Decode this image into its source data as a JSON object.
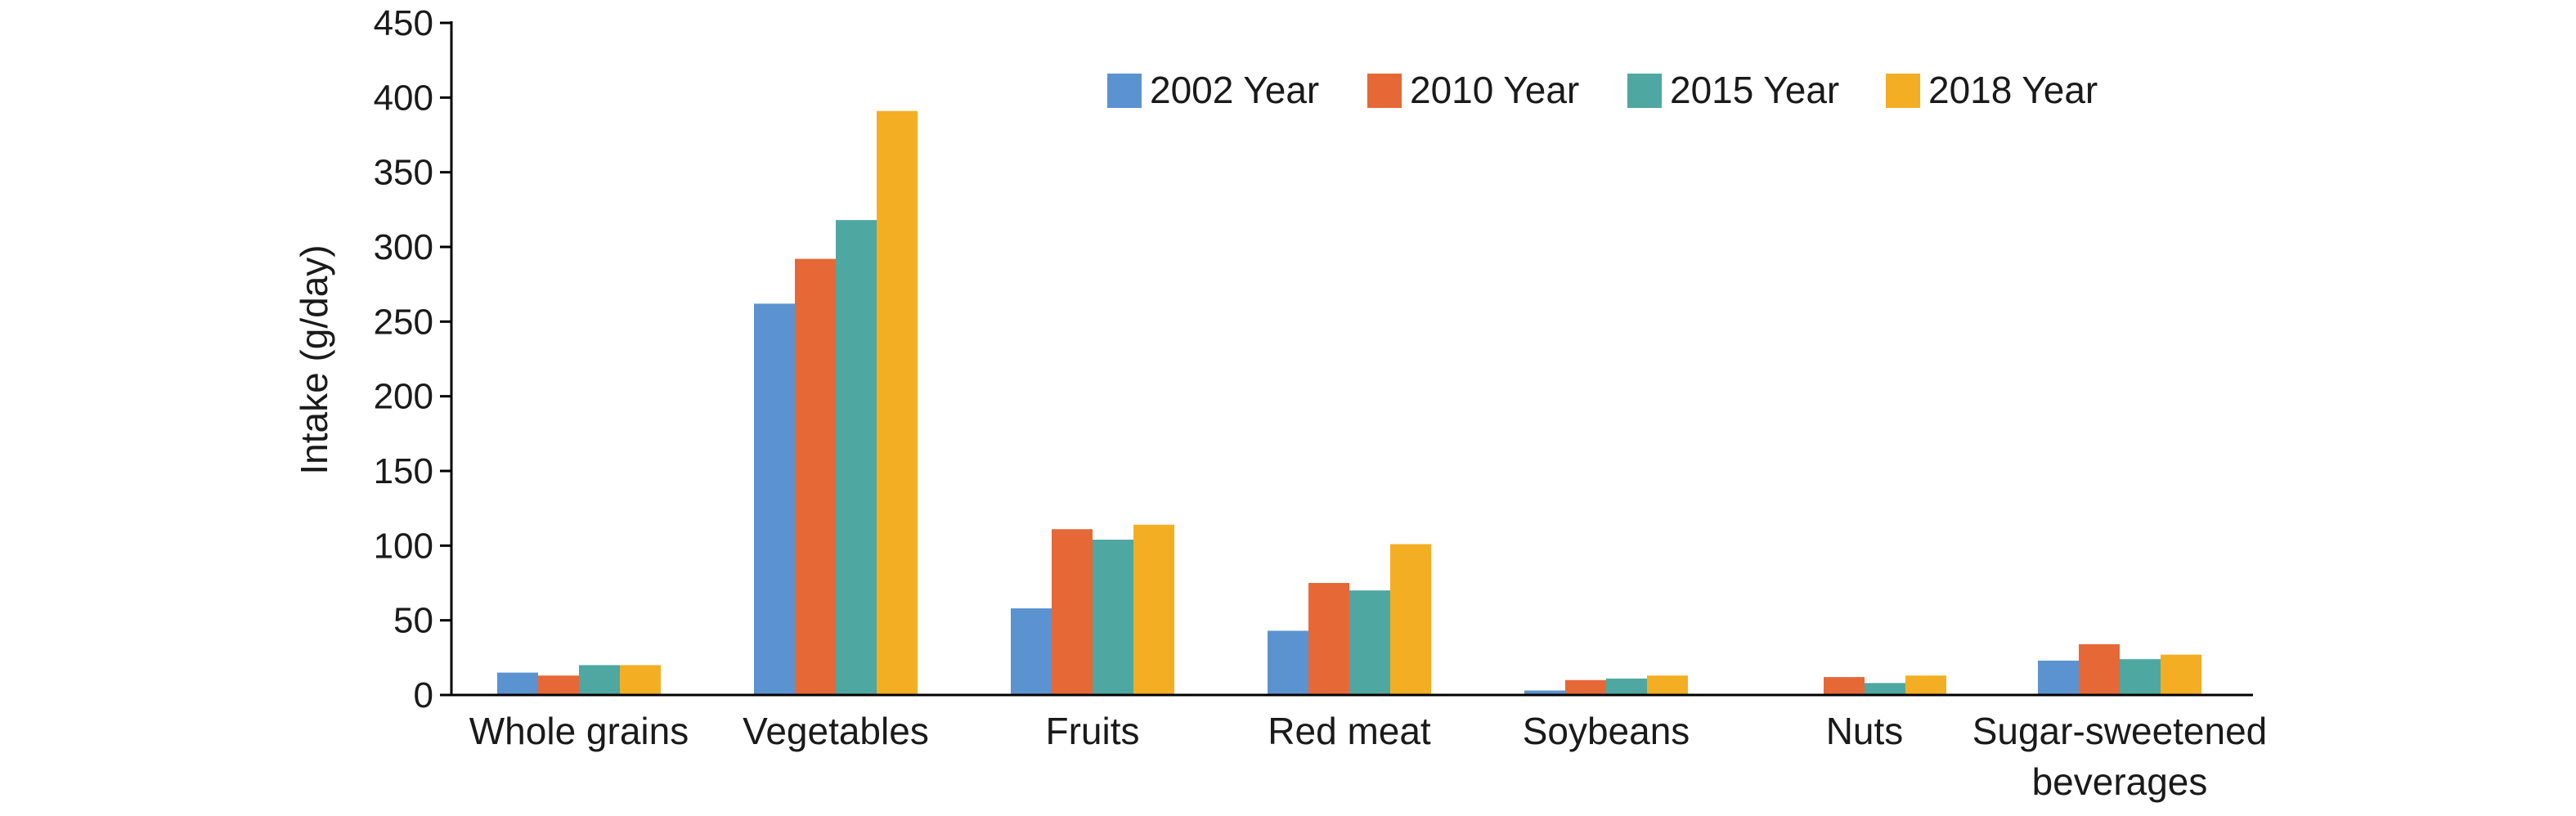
{
  "chart_data": {
    "type": "bar",
    "title": "",
    "xlabel": "",
    "ylabel": "Intake (g/day)",
    "ylim": [
      0,
      450
    ],
    "yticks": [
      0,
      50,
      100,
      150,
      200,
      250,
      300,
      350,
      400,
      450
    ],
    "grid": false,
    "legend_position": "top-right",
    "categories": [
      [
        "Whole grains"
      ],
      [
        "Vegetables"
      ],
      [
        "Fruits"
      ],
      [
        "Red meat"
      ],
      [
        "Soybeans"
      ],
      [
        "Nuts"
      ],
      [
        "Sugar-sweetened",
        "beverages"
      ]
    ],
    "series": [
      {
        "name": "2002 Year",
        "color": "#5b93d0",
        "values": [
          15,
          262,
          58,
          43,
          3,
          null,
          23
        ]
      },
      {
        "name": "2010 Year",
        "color": "#e66836",
        "values": [
          13,
          292,
          111,
          75,
          10,
          12,
          34
        ]
      },
      {
        "name": "2015 Year",
        "color": "#4ea7a0",
        "values": [
          20,
          318,
          104,
          70,
          11,
          8,
          24
        ]
      },
      {
        "name": "2018 Year",
        "color": "#f3ae23",
        "values": [
          20,
          391,
          114,
          101,
          13,
          13,
          27
        ]
      }
    ]
  }
}
